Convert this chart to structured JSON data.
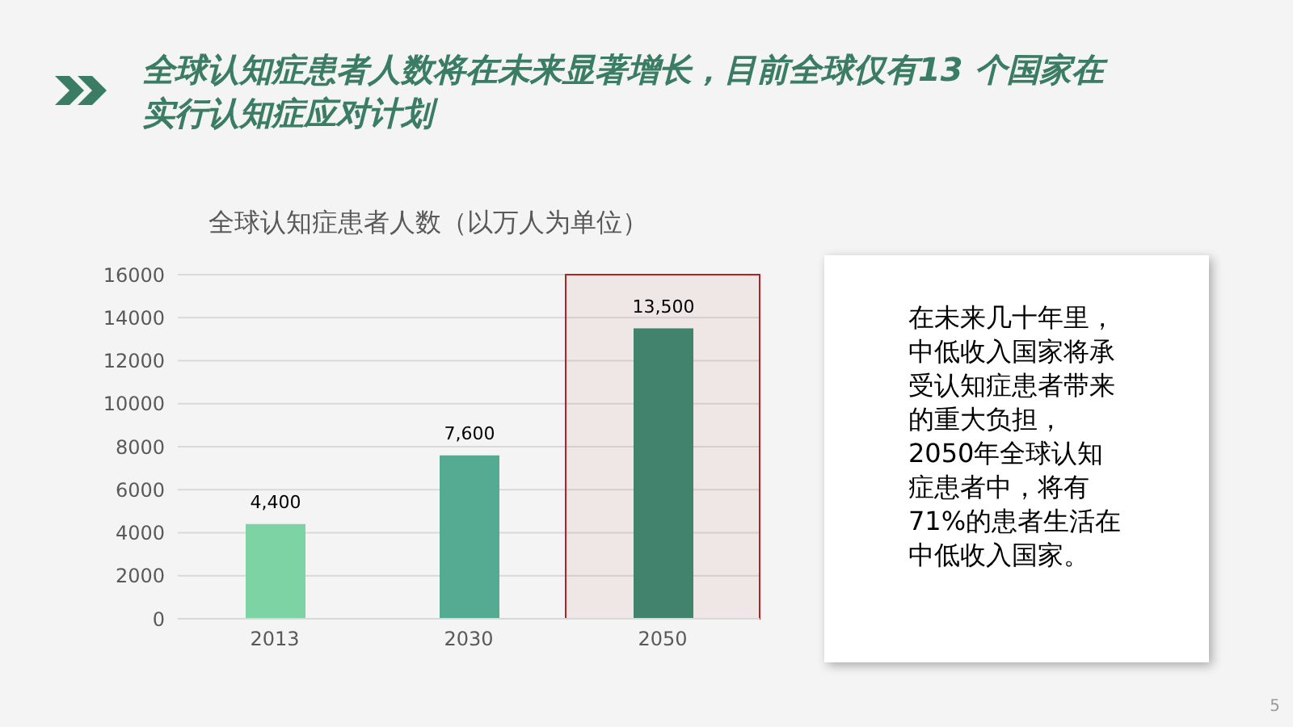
{
  "chart_data": {
    "type": "bar",
    "title": "全球认知症患者人数将在未来显著增长，目前全球仅有13 个国家在实行认知症应对计划",
    "subtitle": "全球认知症患者人数（以万人为单位）",
    "categories": [
      "2013",
      "2030",
      "2050"
    ],
    "values": [
      4400,
      7600,
      13500
    ],
    "value_labels": [
      "4,400",
      "7,600",
      "13,500"
    ],
    "bands": [
      {
        "axis": "x",
        "from": "2050",
        "to": "2050",
        "color": "#b22222"
      }
    ],
    "colors": [
      "#7dd3a4",
      "#55ab91",
      "#41836d"
    ],
    "ylim": [
      0,
      16000
    ],
    "yticks": [
      0,
      2000,
      4000,
      6000,
      8000,
      10000,
      12000,
      14000,
      16000
    ],
    "grid": "y",
    "annotations": [
      "在未来几十年里，中低收入国家将承受认知症患者带来的重大负担，2050年全球认知症患者中，将有71%的患者生活在中低收入国家。",
      "5"
    ]
  }
}
